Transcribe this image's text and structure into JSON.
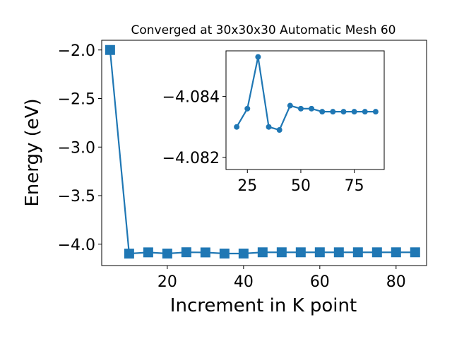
{
  "chart_data": [
    {
      "type": "line",
      "title": "Converged at 30x30x30 Automatic Mesh 60",
      "xlabel": "Increment in K point",
      "ylabel": "Energy (eV)",
      "xlim": [
        2.8,
        88.0
      ],
      "ylim": [
        -4.22,
        -1.9
      ],
      "xticks": [
        20,
        40,
        60,
        80
      ],
      "yticks": [
        -2.0,
        -2.5,
        -3.0,
        -3.5,
        -4.0
      ],
      "ytick_labels": [
        "−2.0",
        "−2.5",
        "−3.0",
        "−3.5",
        "−4.0"
      ],
      "marker": "square",
      "color": "#1f77b4",
      "grid": false,
      "x": [
        5,
        10,
        15,
        20,
        25,
        30,
        35,
        40,
        45,
        50,
        55,
        60,
        65,
        70,
        75,
        80,
        85
      ],
      "y": [
        -2.0,
        -4.097,
        -4.0843,
        -4.0965,
        -4.0832,
        -4.0849,
        -4.0965,
        -4.0964,
        -4.0837,
        -4.0836,
        -4.0838,
        -4.0836,
        -4.0838,
        -4.0836,
        -4.0838,
        -4.0836,
        -4.0837
      ]
    },
    {
      "type": "line",
      "inset": true,
      "xlim": [
        15.0,
        89.0
      ],
      "ylim": [
        -4.0816,
        -4.0855
      ],
      "xticks": [
        25,
        50,
        75
      ],
      "yticks": [
        -4.084,
        -4.082
      ],
      "ytick_labels": [
        "−4.084",
        "−4.082"
      ],
      "marker": "circle",
      "color": "#1f77b4",
      "grid": false,
      "x": [
        20,
        25,
        30,
        35,
        40,
        45,
        50,
        55,
        60,
        65,
        70,
        75,
        80,
        85
      ],
      "y": [
        -4.083,
        -4.0836,
        -4.0853,
        -4.083,
        -4.0829,
        -4.0837,
        -4.0836,
        -4.0836,
        -4.0835,
        -4.0835,
        -4.0835,
        -4.0835,
        -4.0835,
        -4.0835
      ]
    }
  ]
}
